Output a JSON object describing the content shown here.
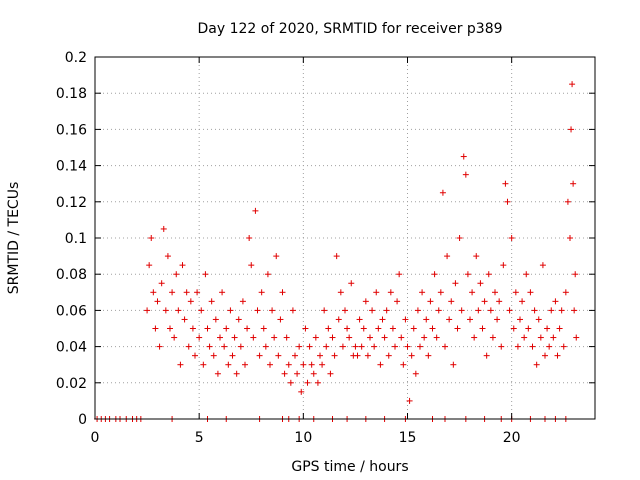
{
  "chart_data": {
    "type": "scatter",
    "title": "Day 122 of 2020, SRMTID for receiver p389",
    "xlabel": "GPS time / hours",
    "ylabel": "SRMTID / TECUs",
    "xlim": [
      0,
      24
    ],
    "ylim": [
      0,
      0.2
    ],
    "x_ticks": [
      "0",
      "5",
      "10",
      "15",
      "20"
    ],
    "y_ticks": [
      "0",
      "0.02",
      "0.04",
      "0.06",
      "0.08",
      "0.1",
      "0.12",
      "0.14",
      "0.16",
      "0.18",
      "0.2"
    ],
    "grid": true,
    "marker": "+",
    "color": "#e00000",
    "series": [
      {
        "name": "SRMTID",
        "points": [
          [
            2.5,
            0.06
          ],
          [
            2.6,
            0.085
          ],
          [
            2.7,
            0.1
          ],
          [
            2.8,
            0.07
          ],
          [
            2.9,
            0.05
          ],
          [
            3.0,
            0.065
          ],
          [
            3.1,
            0.04
          ],
          [
            3.2,
            0.075
          ],
          [
            3.3,
            0.105
          ],
          [
            3.4,
            0.06
          ],
          [
            3.5,
            0.09
          ],
          [
            3.6,
            0.05
          ],
          [
            3.7,
            0.07
          ],
          [
            3.8,
            0.045
          ],
          [
            3.9,
            0.08
          ],
          [
            4.0,
            0.06
          ],
          [
            4.1,
            0.03
          ],
          [
            4.2,
            0.085
          ],
          [
            4.3,
            0.055
          ],
          [
            4.4,
            0.07
          ],
          [
            4.5,
            0.04
          ],
          [
            4.6,
            0.065
          ],
          [
            4.7,
            0.05
          ],
          [
            4.8,
            0.035
          ],
          [
            4.9,
            0.07
          ],
          [
            5.0,
            0.045
          ],
          [
            5.1,
            0.06
          ],
          [
            5.2,
            0.03
          ],
          [
            5.3,
            0.08
          ],
          [
            5.4,
            0.05
          ],
          [
            5.5,
            0.04
          ],
          [
            5.6,
            0.065
          ],
          [
            5.7,
            0.035
          ],
          [
            5.8,
            0.055
          ],
          [
            5.9,
            0.025
          ],
          [
            6.0,
            0.045
          ],
          [
            6.1,
            0.07
          ],
          [
            6.2,
            0.04
          ],
          [
            6.3,
            0.05
          ],
          [
            6.4,
            0.03
          ],
          [
            6.5,
            0.06
          ],
          [
            6.6,
            0.035
          ],
          [
            6.7,
            0.045
          ],
          [
            6.8,
            0.025
          ],
          [
            6.9,
            0.055
          ],
          [
            7.0,
            0.04
          ],
          [
            7.1,
            0.065
          ],
          [
            7.2,
            0.03
          ],
          [
            7.3,
            0.05
          ],
          [
            7.4,
            0.1
          ],
          [
            7.5,
            0.085
          ],
          [
            7.6,
            0.045
          ],
          [
            7.7,
            0.115
          ],
          [
            7.8,
            0.06
          ],
          [
            7.9,
            0.035
          ],
          [
            8.0,
            0.07
          ],
          [
            8.1,
            0.05
          ],
          [
            8.2,
            0.04
          ],
          [
            8.3,
            0.08
          ],
          [
            8.4,
            0.03
          ],
          [
            8.5,
            0.06
          ],
          [
            8.6,
            0.045
          ],
          [
            8.7,
            0.09
          ],
          [
            8.8,
            0.035
          ],
          [
            8.9,
            0.055
          ],
          [
            9.0,
            0.07
          ],
          [
            9.1,
            0.025
          ],
          [
            9.2,
            0.045
          ],
          [
            9.3,
            0.03
          ],
          [
            9.4,
            0.02
          ],
          [
            9.5,
            0.06
          ],
          [
            9.6,
            0.035
          ],
          [
            9.7,
            0.025
          ],
          [
            9.8,
            0.04
          ],
          [
            9.9,
            0.015
          ],
          [
            10.0,
            0.03
          ],
          [
            10.1,
            0.05
          ],
          [
            10.2,
            0.02
          ],
          [
            10.3,
            0.04
          ],
          [
            10.4,
            0.03
          ],
          [
            10.5,
            0.025
          ],
          [
            10.6,
            0.045
          ],
          [
            10.7,
            0.02
          ],
          [
            10.8,
            0.035
          ],
          [
            10.9,
            0.03
          ],
          [
            11.0,
            0.06
          ],
          [
            11.1,
            0.04
          ],
          [
            11.2,
            0.05
          ],
          [
            11.3,
            0.025
          ],
          [
            11.4,
            0.045
          ],
          [
            11.5,
            0.035
          ],
          [
            11.6,
            0.09
          ],
          [
            11.7,
            0.055
          ],
          [
            11.8,
            0.07
          ],
          [
            11.9,
            0.04
          ],
          [
            12.0,
            0.06
          ],
          [
            12.1,
            0.05
          ],
          [
            12.2,
            0.045
          ],
          [
            12.3,
            0.075
          ],
          [
            12.4,
            0.035
          ],
          [
            12.5,
            0.04
          ],
          [
            12.6,
            0.035
          ],
          [
            12.7,
            0.055
          ],
          [
            12.8,
            0.04
          ],
          [
            12.9,
            0.05
          ],
          [
            13.0,
            0.065
          ],
          [
            13.1,
            0.035
          ],
          [
            13.2,
            0.045
          ],
          [
            13.3,
            0.06
          ],
          [
            13.4,
            0.04
          ],
          [
            13.5,
            0.07
          ],
          [
            13.6,
            0.05
          ],
          [
            13.7,
            0.03
          ],
          [
            13.8,
            0.055
          ],
          [
            13.9,
            0.045
          ],
          [
            14.0,
            0.06
          ],
          [
            14.1,
            0.035
          ],
          [
            14.2,
            0.07
          ],
          [
            14.3,
            0.05
          ],
          [
            14.4,
            0.04
          ],
          [
            14.5,
            0.065
          ],
          [
            14.6,
            0.08
          ],
          [
            14.7,
            0.045
          ],
          [
            14.8,
            0.03
          ],
          [
            14.9,
            0.055
          ],
          [
            15.0,
            0.04
          ],
          [
            15.1,
            0.01
          ],
          [
            15.2,
            0.035
          ],
          [
            15.3,
            0.05
          ],
          [
            15.4,
            0.025
          ],
          [
            15.5,
            0.06
          ],
          [
            15.6,
            0.04
          ],
          [
            15.7,
            0.07
          ],
          [
            15.8,
            0.045
          ],
          [
            15.9,
            0.055
          ],
          [
            16.0,
            0.035
          ],
          [
            16.1,
            0.065
          ],
          [
            16.2,
            0.05
          ],
          [
            16.3,
            0.08
          ],
          [
            16.4,
            0.045
          ],
          [
            16.5,
            0.06
          ],
          [
            16.6,
            0.07
          ],
          [
            16.7,
            0.125
          ],
          [
            16.8,
            0.04
          ],
          [
            16.9,
            0.09
          ],
          [
            17.0,
            0.055
          ],
          [
            17.1,
            0.065
          ],
          [
            17.2,
            0.03
          ],
          [
            17.3,
            0.075
          ],
          [
            17.4,
            0.05
          ],
          [
            17.5,
            0.1
          ],
          [
            17.6,
            0.06
          ],
          [
            17.7,
            0.145
          ],
          [
            17.8,
            0.135
          ],
          [
            17.9,
            0.08
          ],
          [
            18.0,
            0.055
          ],
          [
            18.1,
            0.07
          ],
          [
            18.2,
            0.045
          ],
          [
            18.3,
            0.09
          ],
          [
            18.4,
            0.06
          ],
          [
            18.5,
            0.075
          ],
          [
            18.6,
            0.05
          ],
          [
            18.7,
            0.065
          ],
          [
            18.8,
            0.035
          ],
          [
            18.9,
            0.08
          ],
          [
            19.0,
            0.06
          ],
          [
            19.1,
            0.045
          ],
          [
            19.2,
            0.07
          ],
          [
            19.3,
            0.055
          ],
          [
            19.4,
            0.065
          ],
          [
            19.5,
            0.04
          ],
          [
            19.6,
            0.085
          ],
          [
            19.7,
            0.13
          ],
          [
            19.8,
            0.12
          ],
          [
            19.9,
            0.06
          ],
          [
            20.0,
            0.1
          ],
          [
            20.1,
            0.05
          ],
          [
            20.2,
            0.07
          ],
          [
            20.3,
            0.04
          ],
          [
            20.4,
            0.055
          ],
          [
            20.5,
            0.065
          ],
          [
            20.6,
            0.045
          ],
          [
            20.7,
            0.08
          ],
          [
            20.8,
            0.05
          ],
          [
            20.9,
            0.07
          ],
          [
            21.0,
            0.04
          ],
          [
            21.1,
            0.06
          ],
          [
            21.2,
            0.03
          ],
          [
            21.3,
            0.055
          ],
          [
            21.4,
            0.045
          ],
          [
            21.5,
            0.085
          ],
          [
            21.6,
            0.035
          ],
          [
            21.7,
            0.05
          ],
          [
            21.8,
            0.04
          ],
          [
            21.9,
            0.06
          ],
          [
            22.0,
            0.045
          ],
          [
            22.1,
            0.065
          ],
          [
            22.2,
            0.035
          ],
          [
            22.3,
            0.05
          ],
          [
            22.4,
            0.06
          ],
          [
            22.5,
            0.04
          ],
          [
            22.6,
            0.07
          ],
          [
            22.7,
            0.12
          ],
          [
            22.8,
            0.1
          ],
          [
            22.85,
            0.16
          ],
          [
            22.9,
            0.185
          ],
          [
            22.95,
            0.13
          ],
          [
            23.0,
            0.06
          ],
          [
            23.05,
            0.08
          ],
          [
            23.1,
            0.045
          ]
        ]
      }
    ],
    "zero_points_x": [
      0.1,
      0.3,
      0.5,
      0.7,
      1.0,
      1.2,
      1.5,
      1.8,
      2.0,
      2.2,
      3.7,
      5.4,
      6.3,
      7.9,
      9.0,
      9.3,
      9.8,
      10.5,
      11.4,
      12.1,
      13.0,
      13.9,
      14.9,
      16.2,
      16.8,
      17.8,
      18.7,
      19.5,
      20.0,
      20.9,
      21.6,
      22.1,
      22.6
    ]
  }
}
